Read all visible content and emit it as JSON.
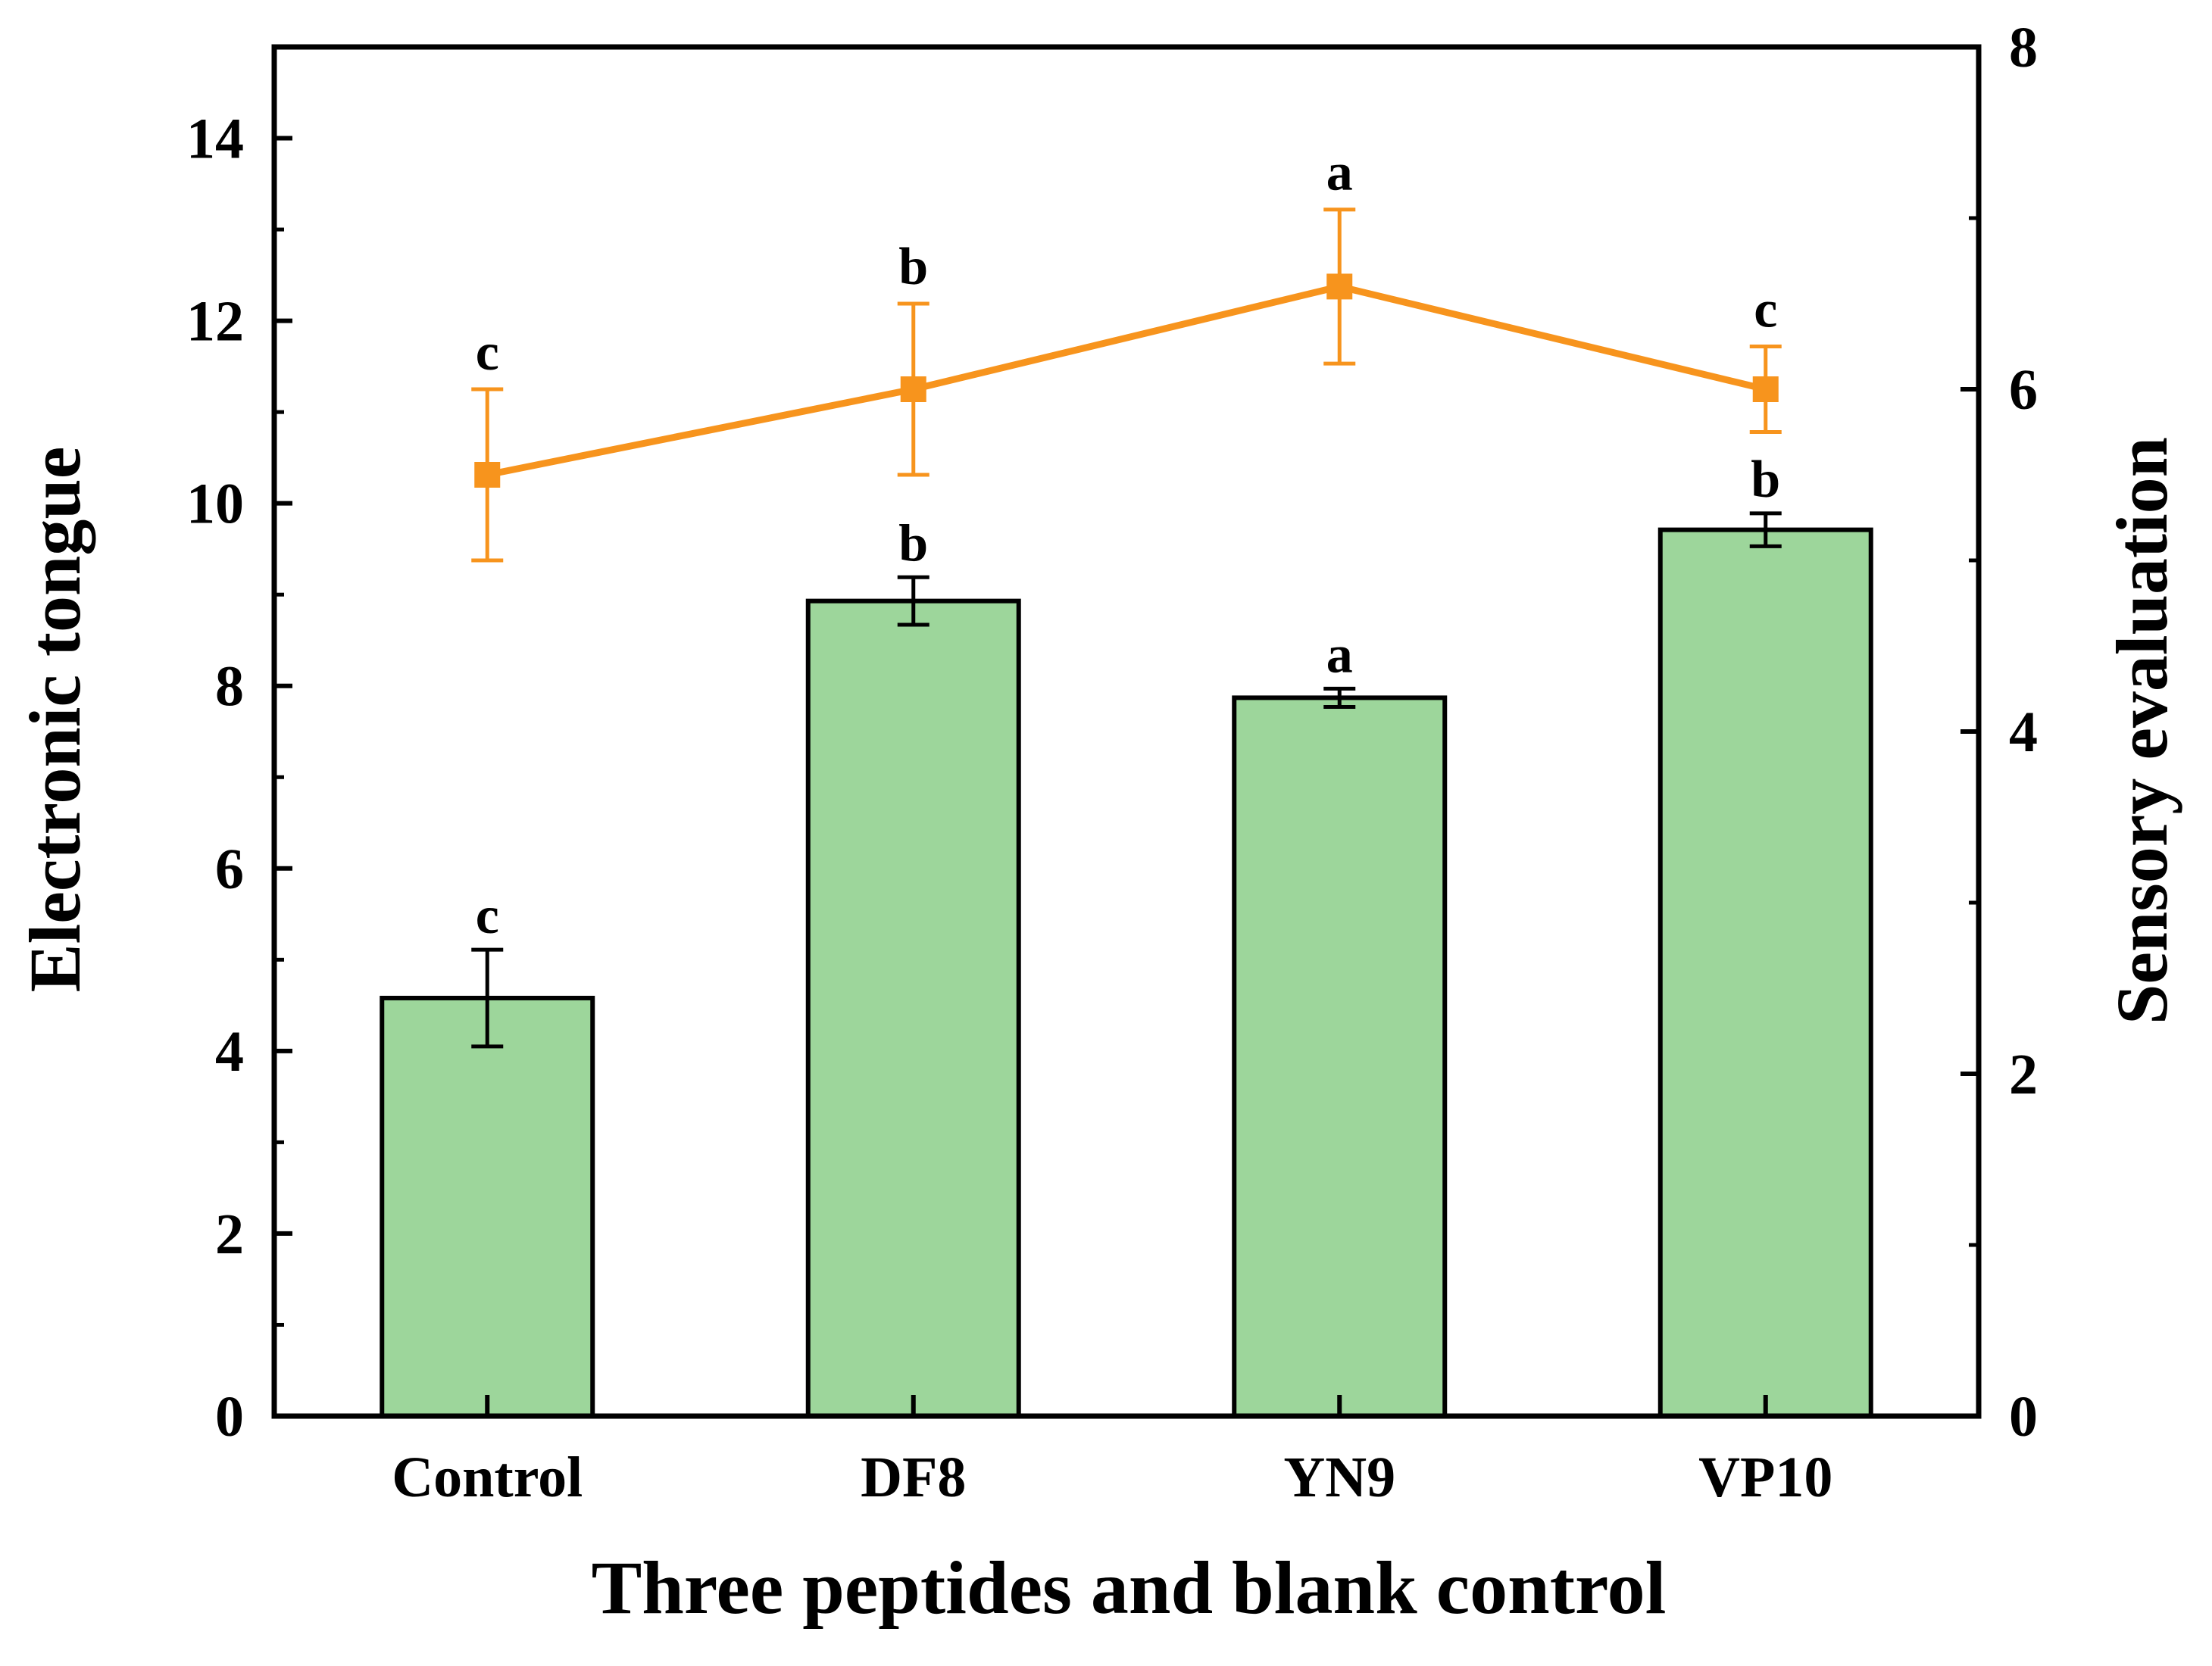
{
  "chart_data": {
    "type": "bar",
    "xlabel": "Three peptides and blank control",
    "ylabel": "Electronic tongue",
    "y2label": "Sensory evaluation",
    "categories": [
      "Control",
      "DF8",
      "YN9",
      "VP10"
    ],
    "ylim": [
      0,
      15
    ],
    "yticks": [
      0,
      2,
      4,
      6,
      8,
      10,
      12,
      14
    ],
    "y2lim": [
      0,
      8
    ],
    "y2ticks": [
      0,
      2,
      4,
      6,
      8
    ],
    "bar_color": "#9dd69b",
    "line_color": "#f7941d",
    "grid": false,
    "series": [
      {
        "axis": "left",
        "type": "bar",
        "values": [
          4.58,
          8.93,
          7.87,
          9.71
        ],
        "errors": [
          0.53,
          0.26,
          0.1,
          0.18
        ],
        "labels": [
          "c",
          "b",
          "a",
          "b"
        ]
      },
      {
        "axis": "right",
        "type": "line",
        "values": [
          5.5,
          6.0,
          6.6,
          6.0
        ],
        "errors": [
          0.5,
          0.5,
          0.45,
          0.25
        ],
        "labels": [
          "c",
          "b",
          "a",
          "c"
        ]
      }
    ]
  }
}
